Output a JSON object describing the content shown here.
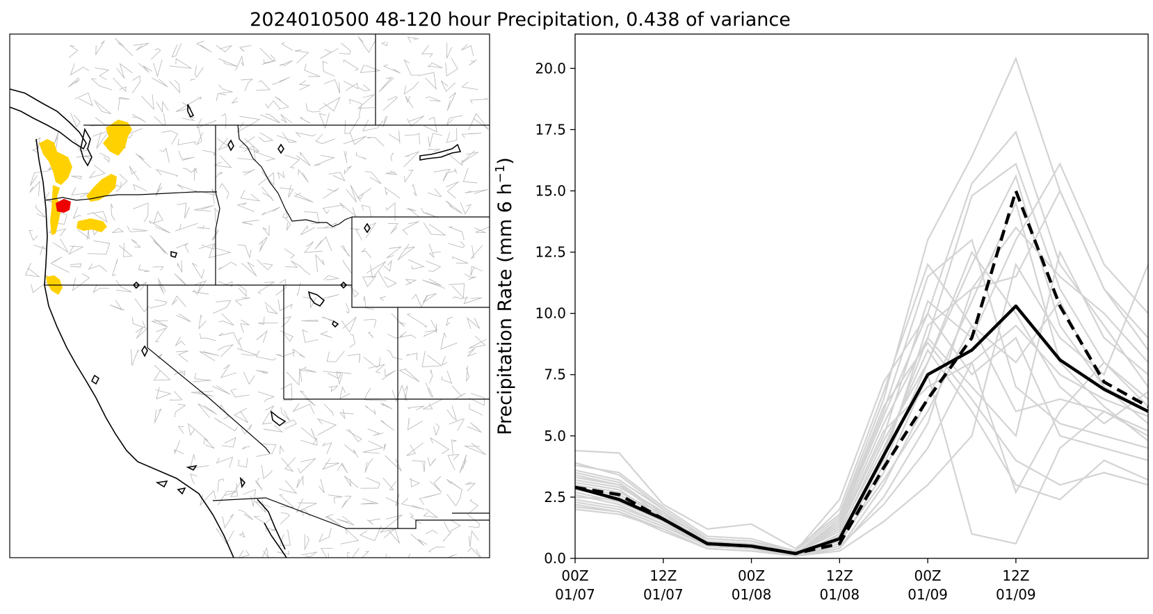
{
  "figure": {
    "title": "2024010500 48-120 hour Precipitation, 0.438 of variance"
  },
  "map_panel": {
    "highlight_colors": {
      "moderate": "#FFD100",
      "high": "#EE0000"
    },
    "boundary_color": "#000000",
    "basin_color": "#BBBBBB"
  },
  "chart_data": {
    "type": "line",
    "title": "2024010500 48-120 hour Precipitation, 0.438 of variance",
    "xlabel": "",
    "ylabel": "Precipitation Rate (mm 6 h⁻¹)",
    "x_ticks": [
      "00Z 01/07",
      "12Z 01/07",
      "00Z 01/08",
      "12Z 01/08",
      "00Z 01/09",
      "12Z 01/09"
    ],
    "xlim": [
      "00Z 01/07",
      "06Z 01/10"
    ],
    "x": [
      "00Z 01/07",
      "06Z 01/07",
      "12Z 01/07",
      "18Z 01/07",
      "00Z 01/08",
      "06Z 01/08",
      "12Z 01/08",
      "18Z 01/08",
      "00Z 01/09",
      "06Z 01/09",
      "12Z 01/09",
      "18Z 01/09",
      "00Z 01/10",
      "06Z 01/10"
    ],
    "ylim": [
      0,
      21.4
    ],
    "y_ticks": [
      0.0,
      2.5,
      5.0,
      7.5,
      10.0,
      12.5,
      15.0,
      17.5,
      20.0
    ],
    "grid": false,
    "series": [
      {
        "style": "solid",
        "color": "#000000",
        "values": [
          2.9,
          2.4,
          1.6,
          0.6,
          0.5,
          0.2,
          0.8,
          4.2,
          7.5,
          8.5,
          10.3,
          8.1,
          6.9,
          6.0
        ]
      },
      {
        "style": "dashed",
        "color": "#000000",
        "values": [
          2.9,
          2.6,
          1.6,
          0.6,
          0.5,
          0.2,
          0.6,
          3.7,
          6.5,
          9.0,
          15.0,
          10.3,
          7.2,
          6.2
        ]
      },
      {
        "style": "ensemble",
        "color": "#D3D3D3",
        "values": [
          4.4,
          4.3,
          2.2,
          1.2,
          1.4,
          0.4,
          1.8,
          6.5,
          13.0,
          16.4,
          20.4,
          15.0,
          11.0,
          9.0
        ]
      },
      {
        "style": "ensemble",
        "color": "#D3D3D3",
        "values": [
          3.6,
          3.2,
          2.0,
          0.8,
          0.7,
          0.3,
          2.4,
          7.2,
          10.0,
          15.3,
          17.4,
          12.0,
          9.5,
          7.0
        ]
      },
      {
        "style": "ensemble",
        "color": "#D3D3D3",
        "values": [
          3.0,
          2.7,
          1.8,
          0.6,
          0.5,
          0.2,
          1.4,
          5.5,
          9.0,
          14.8,
          16.1,
          11.0,
          8.0,
          6.2
        ]
      },
      {
        "style": "ensemble",
        "color": "#D3D3D3",
        "values": [
          2.5,
          2.4,
          1.5,
          0.5,
          0.4,
          0.1,
          1.0,
          4.8,
          8.0,
          12.0,
          15.6,
          9.5,
          7.0,
          5.5
        ]
      },
      {
        "style": "ensemble",
        "color": "#D3D3D3",
        "values": [
          2.0,
          1.8,
          1.2,
          0.4,
          0.3,
          0.1,
          0.4,
          3.0,
          6.5,
          10.5,
          14.5,
          8.0,
          6.2,
          4.8
        ]
      },
      {
        "style": "ensemble",
        "color": "#D3D3D3",
        "values": [
          3.2,
          2.9,
          1.9,
          0.7,
          0.6,
          0.2,
          1.2,
          5.0,
          10.5,
          9.0,
          13.0,
          16.1,
          12.0,
          10.0
        ]
      },
      {
        "style": "ensemble",
        "color": "#D3D3D3",
        "values": [
          2.8,
          2.5,
          1.6,
          0.6,
          0.5,
          0.2,
          0.9,
          4.0,
          9.5,
          11.0,
          11.5,
          15.0,
          11.0,
          8.5
        ]
      },
      {
        "style": "ensemble",
        "color": "#D3D3D3",
        "values": [
          3.4,
          3.0,
          1.7,
          0.7,
          0.6,
          0.2,
          1.6,
          6.0,
          11.5,
          13.0,
          7.0,
          5.5,
          5.0,
          4.5
        ]
      },
      {
        "style": "ensemble",
        "color": "#D3D3D3",
        "values": [
          2.6,
          2.2,
          1.4,
          0.5,
          0.4,
          0.1,
          0.6,
          3.5,
          7.5,
          1.0,
          0.6,
          4.5,
          6.0,
          5.0
        ]
      },
      {
        "style": "ensemble",
        "color": "#D3D3D3",
        "values": [
          3.1,
          2.8,
          1.6,
          0.7,
          0.5,
          0.2,
          1.1,
          4.5,
          8.5,
          6.0,
          3.0,
          2.4,
          4.0,
          3.2
        ]
      },
      {
        "style": "ensemble",
        "color": "#D3D3D3",
        "values": [
          2.3,
          2.0,
          1.3,
          0.5,
          0.4,
          0.1,
          0.5,
          2.2,
          4.5,
          8.0,
          9.5,
          7.5,
          6.5,
          5.8
        ]
      },
      {
        "style": "ensemble",
        "color": "#D3D3D3",
        "values": [
          3.8,
          3.5,
          2.1,
          0.9,
          0.8,
          0.3,
          2.0,
          6.8,
          12.0,
          9.5,
          6.0,
          6.5,
          6.0,
          5.2
        ]
      },
      {
        "style": "ensemble",
        "color": "#D3D3D3",
        "values": [
          2.7,
          2.3,
          1.5,
          0.6,
          0.5,
          0.2,
          0.8,
          3.8,
          8.0,
          12.5,
          10.0,
          7.0,
          5.5,
          6.8
        ]
      },
      {
        "style": "ensemble",
        "color": "#D3D3D3",
        "values": [
          2.2,
          1.9,
          1.1,
          0.4,
          0.3,
          0.1,
          0.3,
          1.5,
          3.0,
          5.0,
          12.0,
          9.0,
          7.5,
          12.0
        ]
      },
      {
        "style": "ensemble",
        "color": "#D3D3D3",
        "values": [
          3.5,
          3.1,
          1.8,
          0.8,
          0.7,
          0.2,
          1.3,
          5.2,
          7.0,
          8.0,
          2.7,
          6.0,
          8.0,
          6.5
        ]
      },
      {
        "style": "ensemble",
        "color": "#D3D3D3",
        "values": [
          2.9,
          2.6,
          1.7,
          0.6,
          0.5,
          0.2,
          0.9,
          4.3,
          9.0,
          7.0,
          5.0,
          12.5,
          9.0,
          7.5
        ]
      },
      {
        "style": "ensemble",
        "color": "#D3D3D3",
        "values": [
          2.4,
          2.1,
          1.4,
          0.5,
          0.4,
          0.1,
          0.7,
          3.2,
          6.0,
          9.5,
          8.0,
          10.5,
          7.0,
          6.0
        ]
      },
      {
        "style": "ensemble",
        "color": "#D3D3D3",
        "values": [
          3.3,
          3.0,
          1.9,
          0.7,
          0.6,
          0.2,
          1.5,
          5.8,
          10.0,
          7.5,
          9.0,
          5.0,
          4.5,
          4.0
        ]
      },
      {
        "style": "ensemble",
        "color": "#D3D3D3",
        "values": [
          2.1,
          1.9,
          1.2,
          0.4,
          0.3,
          0.1,
          0.4,
          2.5,
          5.5,
          11.0,
          13.5,
          11.5,
          10.0,
          8.0
        ]
      },
      {
        "style": "ensemble",
        "color": "#D3D3D3",
        "values": [
          3.9,
          3.4,
          2.0,
          0.8,
          0.7,
          0.3,
          1.7,
          6.2,
          8.8,
          6.5,
          4.0,
          3.0,
          3.5,
          3.0
        ]
      }
    ]
  }
}
